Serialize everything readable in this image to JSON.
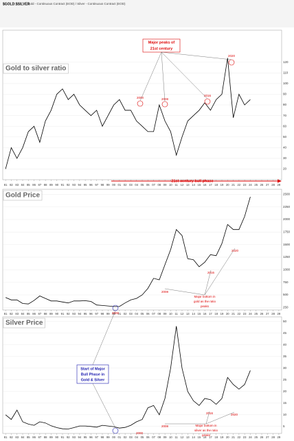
{
  "header": {
    "title": "$GOLD:$SILVER",
    "subtitle": "Gold - Continuous Contract (EOD) / Silver - Continuous Contract (EOD)"
  },
  "chart_data": [
    {
      "type": "line",
      "title": "Gold to silver ratio",
      "color": "#000000",
      "categories": [
        "81",
        "82",
        "83",
        "84",
        "85",
        "86",
        "87",
        "88",
        "89",
        "90",
        "91",
        "92",
        "93",
        "94",
        "95",
        "96",
        "97",
        "98",
        "99",
        "00",
        "01",
        "02",
        "03",
        "04",
        "05",
        "06",
        "07",
        "08",
        "09",
        "10",
        "11",
        "12",
        "13",
        "14",
        "15",
        "16",
        "17",
        "18",
        "19",
        "20",
        "21",
        "22",
        "23",
        "24",
        "25",
        "26",
        "27",
        "28",
        "29"
      ],
      "values": [
        20,
        40,
        30,
        40,
        55,
        60,
        45,
        65,
        75,
        90,
        95,
        85,
        90,
        80,
        75,
        70,
        75,
        60,
        70,
        80,
        85,
        75,
        75,
        65,
        60,
        55,
        55,
        80,
        65,
        55,
        33,
        50,
        65,
        70,
        75,
        82,
        75,
        85,
        90,
        124,
        68,
        90,
        80,
        85,
        null,
        null,
        null,
        null,
        null
      ],
      "ylim": [
        10,
        150
      ],
      "yticks": [
        20,
        30,
        40,
        50,
        60,
        70,
        80,
        90,
        100,
        110,
        120
      ],
      "grid": true,
      "annotations": [
        "Major peaks of",
        "21st century",
        "2020",
        "2016",
        "2008",
        "2000",
        "21st century bull phase"
      ]
    },
    {
      "type": "line",
      "title": "Gold Price",
      "color": "#000000",
      "categories": [
        "81",
        "82",
        "83",
        "84",
        "85",
        "86",
        "87",
        "88",
        "89",
        "90",
        "91",
        "92",
        "93",
        "94",
        "95",
        "96",
        "97",
        "98",
        "99",
        "00",
        "01",
        "02",
        "03",
        "04",
        "05",
        "06",
        "07",
        "08",
        "09",
        "10",
        "11",
        "12",
        "13",
        "14",
        "15",
        "16",
        "17",
        "18",
        "19",
        "20",
        "21",
        "22",
        "23",
        "24",
        "25",
        "26",
        "27",
        "28",
        "29"
      ],
      "values": [
        450,
        400,
        400,
        330,
        320,
        390,
        480,
        430,
        380,
        380,
        360,
        340,
        380,
        380,
        385,
        370,
        300,
        290,
        280,
        270,
        270,
        340,
        400,
        430,
        500,
        630,
        830,
        800,
        1100,
        1400,
        1800,
        1680,
        1220,
        1200,
        1060,
        1150,
        1300,
        1280,
        1520,
        1900,
        1800,
        1800,
        2060,
        2450,
        null,
        null,
        null,
        null,
        null
      ],
      "ylim": [
        200,
        2600
      ],
      "yticks": [
        250,
        500,
        750,
        1000,
        1250,
        1500,
        1750,
        2000,
        2250,
        2500
      ],
      "grid": true,
      "annotations": [
        "2000",
        "2008",
        "2016",
        "2020",
        "Major bottom in",
        "gold as the ratio",
        "peaks"
      ]
    },
    {
      "type": "line",
      "title": "Silver Price",
      "color": "#000000",
      "categories": [
        "81",
        "82",
        "83",
        "84",
        "85",
        "86",
        "87",
        "88",
        "89",
        "90",
        "91",
        "92",
        "93",
        "94",
        "95",
        "96",
        "97",
        "98",
        "99",
        "00",
        "01",
        "02",
        "03",
        "04",
        "05",
        "06",
        "07",
        "08",
        "09",
        "10",
        "11",
        "12",
        "13",
        "14",
        "15",
        "16",
        "17",
        "18",
        "19",
        "20",
        "21",
        "22",
        "23",
        "24",
        "25",
        "26",
        "27",
        "28",
        "29"
      ],
      "values": [
        10,
        8,
        12,
        7,
        6,
        5.5,
        7,
        6.5,
        5.3,
        4.5,
        4,
        3.9,
        4.5,
        5.2,
        5.2,
        5,
        4.7,
        5.5,
        5.2,
        4.9,
        4.3,
        4.6,
        5.5,
        7,
        8,
        13,
        14,
        10,
        17,
        30,
        48,
        30,
        20,
        16,
        14,
        17,
        16.5,
        14.5,
        17,
        26,
        23,
        21,
        23,
        29,
        null,
        null,
        null,
        null,
        null
      ],
      "ylim": [
        2,
        52
      ],
      "yticks": [
        5,
        10,
        15,
        20,
        25,
        30,
        35,
        40,
        45,
        50
      ],
      "grid": true,
      "annotations": [
        "Start of Major",
        "Bull Phase in",
        "Gold & Silver",
        "2000",
        "2008",
        "2016",
        "2020",
        "Major bottom in",
        "silver as the ratio",
        "peaks"
      ]
    }
  ]
}
